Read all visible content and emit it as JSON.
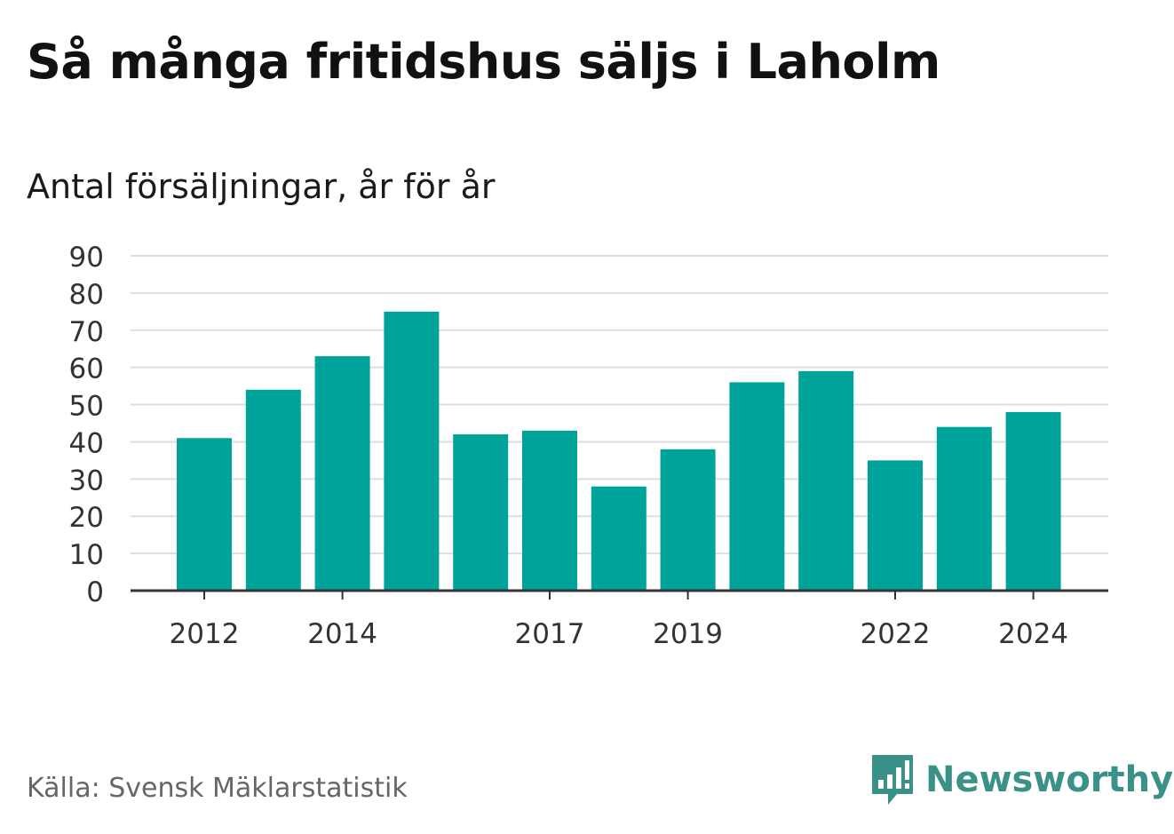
{
  "header": {
    "title": "Så många fritidshus säljs i Laholm",
    "subtitle": "Antal försäljningar, år för år"
  },
  "footer": {
    "source": "Källa: Svensk Mäklarstatistik",
    "brand": "Newsworthy",
    "brand_icon": "bar-chart-speech-bubble-icon"
  },
  "colors": {
    "bar": "#00a39a",
    "grid": "#dddddd",
    "axis": "#333333",
    "brand": "#3a9188"
  },
  "chart_data": {
    "type": "bar",
    "categories": [
      "2012",
      "2013",
      "2014",
      "2015",
      "2016",
      "2017",
      "2018",
      "2019",
      "2020",
      "2021",
      "2022",
      "2023",
      "2024"
    ],
    "values": [
      41,
      54,
      63,
      75,
      42,
      43,
      28,
      38,
      56,
      59,
      35,
      44,
      48
    ],
    "x_tick_labels": [
      "2012",
      "2014",
      "2017",
      "2019",
      "2022",
      "2024"
    ],
    "y_ticks": [
      0,
      10,
      20,
      30,
      40,
      50,
      60,
      70,
      80,
      90
    ],
    "ylim": [
      0,
      90
    ],
    "grid": true,
    "title": "Så många fritidshus säljs i Laholm",
    "subtitle": "Antal försäljningar, år för år",
    "xlabel": "",
    "ylabel": ""
  }
}
